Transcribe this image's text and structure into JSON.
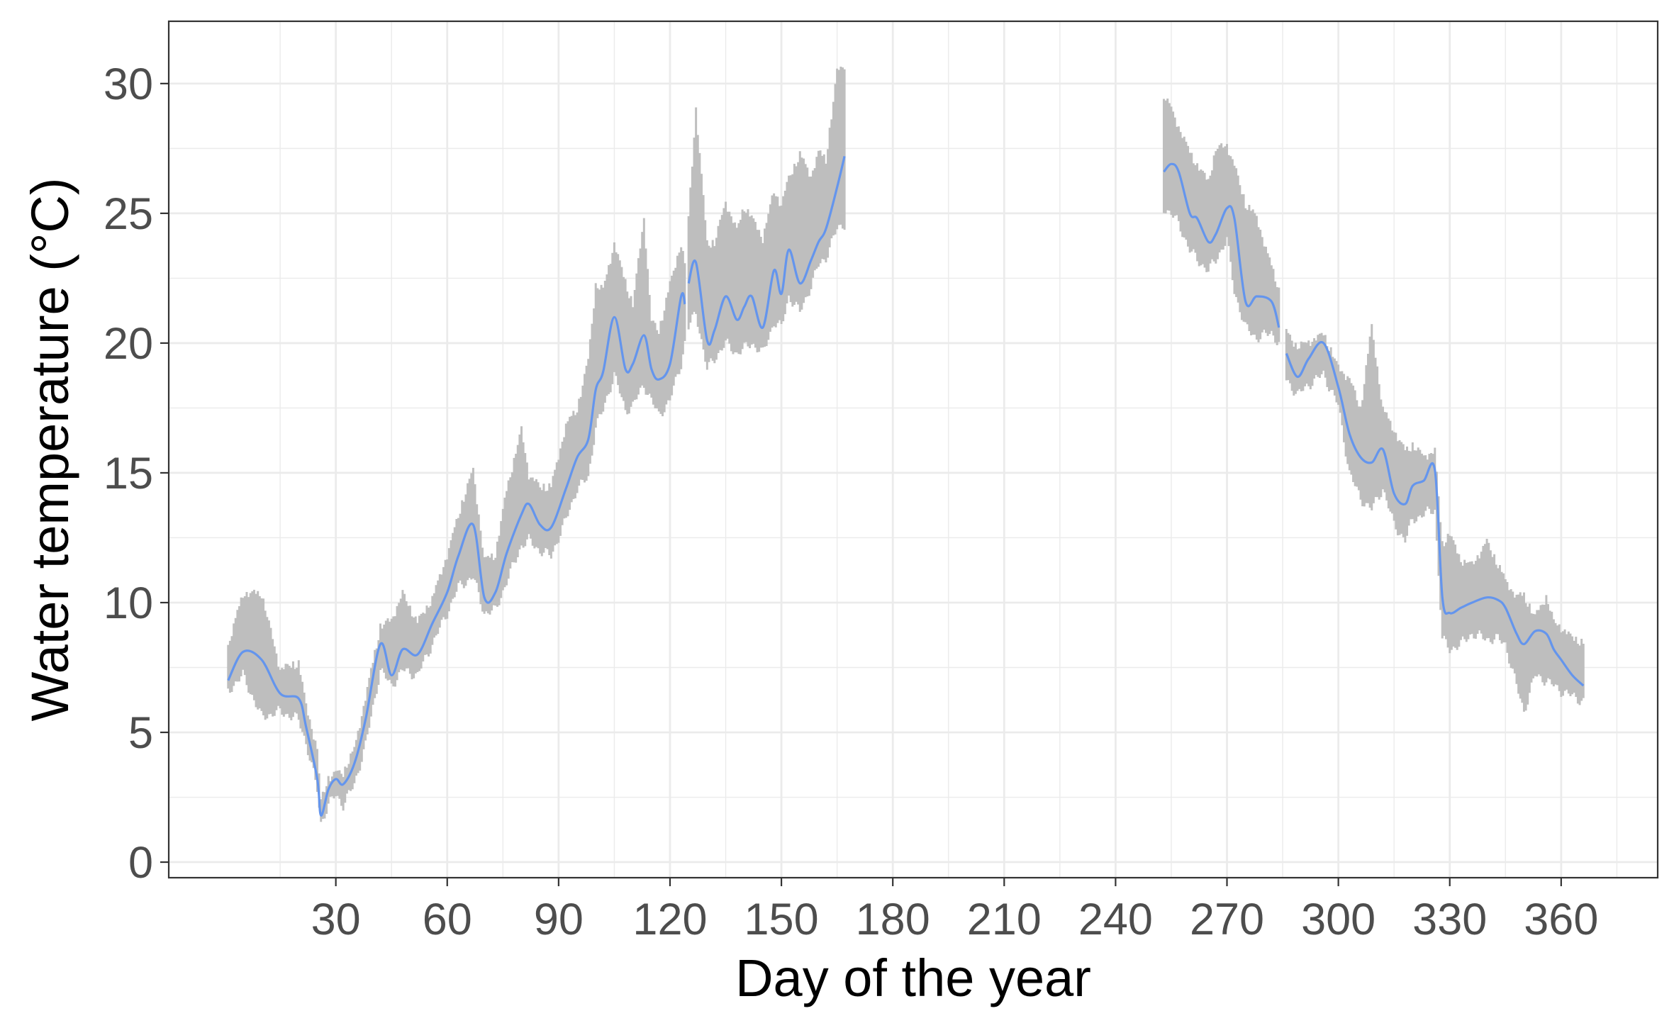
{
  "chart_data": {
    "type": "line",
    "title": "",
    "xlabel": "Day of the year",
    "ylabel": "Water temperature (°C)",
    "xlim": [
      -15,
      386
    ],
    "ylim": [
      -0.6,
      32.4
    ],
    "grid": true,
    "legend": "none",
    "x_ticks": [
      30,
      60,
      90,
      120,
      150,
      180,
      210,
      240,
      270,
      300,
      330,
      360
    ],
    "y_ticks": [
      0,
      5,
      10,
      15,
      20,
      25,
      30
    ],
    "colors": {
      "mean_line": "#6495ed",
      "range_bars": "#bebebe",
      "grid": "#ebebeb",
      "panel_border": "#333333"
    },
    "segments": [
      {
        "x": [
          1,
          5,
          10,
          15,
          20,
          22,
          25,
          26,
          28,
          30,
          32,
          35,
          38,
          42,
          45,
          48,
          52,
          56,
          60,
          63,
          67,
          70,
          73,
          76,
          80,
          82,
          85,
          88,
          92,
          95,
          98,
          100,
          102,
          105,
          108,
          110,
          113,
          115,
          117,
          120,
          123,
          124
        ],
        "y": [
          7.0,
          8.1,
          7.8,
          6.5,
          6.3,
          5.2,
          3.2,
          1.8,
          2.8,
          3.2,
          3.0,
          3.8,
          5.5,
          8.4,
          7.2,
          8.2,
          8.0,
          9.2,
          10.4,
          11.8,
          13.0,
          10.2,
          10.4,
          11.9,
          13.4,
          13.8,
          13.0,
          12.9,
          14.4,
          15.6,
          16.3,
          18.2,
          18.9,
          21.0,
          19.0,
          19.2,
          20.3,
          19.0,
          18.6,
          19.2,
          21.8,
          21.5
        ],
        "low": [
          6.6,
          7.2,
          5.6,
          5.8,
          5.5,
          4.6,
          2.8,
          1.5,
          2.2,
          2.6,
          2.2,
          3.0,
          4.5,
          7.4,
          6.8,
          7.4,
          7.2,
          8.4,
          9.6,
          10.6,
          11.0,
          9.6,
          9.7,
          10.8,
          12.2,
          12.4,
          12.0,
          11.8,
          13.2,
          14.4,
          14.8,
          16.8,
          17.4,
          18.8,
          17.4,
          17.6,
          18.4,
          17.8,
          17.2,
          17.8,
          19.2,
          20.0
        ],
        "high": [
          8.5,
          10.5,
          10.5,
          7.6,
          7.8,
          6.2,
          4.5,
          2.5,
          3.4,
          3.6,
          3.6,
          4.5,
          6.5,
          9.2,
          9.5,
          10.5,
          9.4,
          10.3,
          12.0,
          13.5,
          15.3,
          11.8,
          12.0,
          14.5,
          16.8,
          15.1,
          14.6,
          14.6,
          17.0,
          17.6,
          19.5,
          22.4,
          22.2,
          24.0,
          22.5,
          21.6,
          25.0,
          21.0,
          20.6,
          22.4,
          24.0,
          23.2
        ]
      },
      {
        "x": [
          125,
          127,
          130,
          132,
          135,
          138,
          140,
          142,
          145,
          148,
          150,
          152,
          155,
          158,
          160,
          162,
          165,
          167
        ],
        "y": [
          22.3,
          23.1,
          20.1,
          20.5,
          21.8,
          20.9,
          21.4,
          21.8,
          20.6,
          22.8,
          21.9,
          23.6,
          22.3,
          23.2,
          23.9,
          24.4,
          26.0,
          27.2
        ],
        "low": [
          20.6,
          21.2,
          19.0,
          19.4,
          20.0,
          19.6,
          19.8,
          20.0,
          19.6,
          20.8,
          20.6,
          21.8,
          21.2,
          22.2,
          23.0,
          23.3,
          24.4,
          24.6
        ],
        "high": [
          25.0,
          29.2,
          24.0,
          24.0,
          25.6,
          24.5,
          25.4,
          25.0,
          24.2,
          26.0,
          25.5,
          26.5,
          27.4,
          26.6,
          27.5,
          27.2,
          30.6,
          30.9
        ]
      },
      {
        "x": [
          253,
          255,
          257,
          260,
          262,
          265,
          267,
          270,
          272,
          275,
          278,
          282,
          284
        ],
        "y": [
          26.6,
          26.9,
          26.6,
          25.0,
          24.8,
          23.9,
          24.2,
          25.2,
          24.8,
          21.6,
          21.8,
          21.6,
          20.6
        ],
        "low": [
          25.2,
          25.0,
          24.6,
          23.6,
          23.2,
          22.8,
          23.2,
          24.0,
          22.0,
          20.6,
          20.2,
          20.4,
          20.0
        ],
        "high": [
          29.7,
          29.2,
          28.5,
          27.5,
          27.0,
          26.4,
          27.6,
          27.8,
          27.0,
          25.5,
          25.0,
          23.1,
          22.2
        ]
      },
      {
        "x": [
          286,
          289,
          292,
          296,
          300,
          303,
          306,
          309,
          312,
          315,
          318,
          320,
          323,
          326,
          328,
          330,
          333,
          336,
          340,
          343,
          345,
          348,
          350,
          353,
          356,
          358,
          360,
          363,
          366
        ],
        "y": [
          19.6,
          18.7,
          19.4,
          20.0,
          18.3,
          16.5,
          15.6,
          15.4,
          15.9,
          14.2,
          13.8,
          14.5,
          14.7,
          15.1,
          10.2,
          9.6,
          9.8,
          10.0,
          10.2,
          10.1,
          9.8,
          8.8,
          8.4,
          8.9,
          8.8,
          8.2,
          7.8,
          7.2,
          6.8
        ],
        "low": [
          18.6,
          18.0,
          18.4,
          18.8,
          17.6,
          15.0,
          14.0,
          13.6,
          14.4,
          13.0,
          12.4,
          13.2,
          13.4,
          13.6,
          8.6,
          8.2,
          8.4,
          8.8,
          8.6,
          8.6,
          8.4,
          6.8,
          5.8,
          7.2,
          7.0,
          6.8,
          6.6,
          6.4,
          6.2
        ],
        "high": [
          20.6,
          20.0,
          20.2,
          20.5,
          19.2,
          18.8,
          17.6,
          20.8,
          17.6,
          16.8,
          16.0,
          16.2,
          15.8,
          16.0,
          12.4,
          12.8,
          11.8,
          11.6,
          12.5,
          11.6,
          11.0,
          10.4,
          10.4,
          9.6,
          10.4,
          9.4,
          9.2,
          8.8,
          8.6
        ]
      }
    ]
  }
}
